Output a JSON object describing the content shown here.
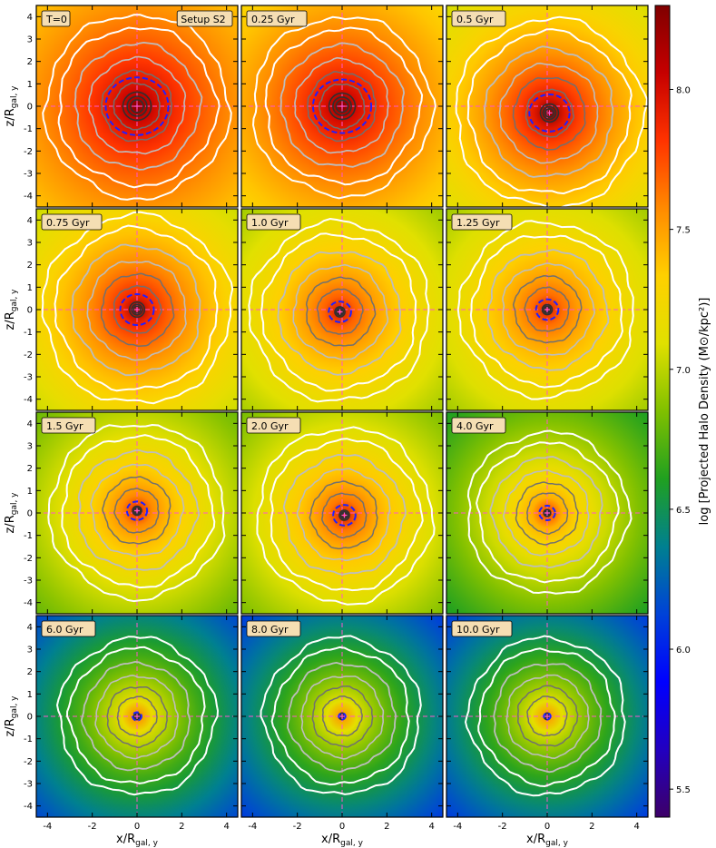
{
  "chart_data": {
    "type": "heatmap",
    "layout": {
      "rows": 4,
      "cols": 3
    },
    "setup_label": "Setup S2",
    "panels": [
      {
        "time_label": "T=0",
        "t_gyr": 0,
        "core_logrho": 8.3,
        "outer_logrho": 7.35,
        "dashed_blue_radius": 1.4,
        "outer_white_contour_radius": 4.1,
        "blob_dx": 0.0,
        "blob_dy": 0.0
      },
      {
        "time_label": "0.25 Gyr",
        "t_gyr": 0.25,
        "core_logrho": 8.3,
        "outer_logrho": 7.25,
        "dashed_blue_radius": 1.3,
        "outer_white_contour_radius": 4.0,
        "blob_dx": 0.0,
        "blob_dy": 0.0
      },
      {
        "time_label": "0.5 Gyr",
        "t_gyr": 0.5,
        "core_logrho": 8.3,
        "outer_logrho": 7.05,
        "dashed_blue_radius": 0.9,
        "outer_white_contour_radius": 4.2,
        "blob_dx": 0.1,
        "blob_dy": -0.3
      },
      {
        "time_label": "0.75 Gyr",
        "t_gyr": 0.75,
        "core_logrho": 8.2,
        "outer_logrho": 7.0,
        "dashed_blue_radius": 0.75,
        "outer_white_contour_radius": 4.2,
        "blob_dx": 0.0,
        "blob_dy": 0.0
      },
      {
        "time_label": "1.0 Gyr",
        "t_gyr": 1.0,
        "core_logrho": 8.0,
        "outer_logrho": 6.9,
        "dashed_blue_radius": 0.5,
        "outer_white_contour_radius": 4.0,
        "blob_dx": -0.1,
        "blob_dy": -0.1
      },
      {
        "time_label": "1.25 Gyr",
        "t_gyr": 1.25,
        "core_logrho": 7.95,
        "outer_logrho": 6.9,
        "dashed_blue_radius": 0.5,
        "outer_white_contour_radius": 3.9,
        "blob_dx": 0.0,
        "blob_dy": 0.0
      },
      {
        "time_label": "1.5 Gyr",
        "t_gyr": 1.5,
        "core_logrho": 7.9,
        "outer_logrho": 6.75,
        "dashed_blue_radius": 0.45,
        "outer_white_contour_radius": 3.9,
        "blob_dx": 0.0,
        "blob_dy": 0.1
      },
      {
        "time_label": "2.0 Gyr",
        "t_gyr": 2.0,
        "core_logrho": 7.95,
        "outer_logrho": 6.8,
        "dashed_blue_radius": 0.5,
        "outer_white_contour_radius": 3.9,
        "blob_dx": 0.1,
        "blob_dy": -0.1
      },
      {
        "time_label": "4.0 Gyr",
        "t_gyr": 4.0,
        "core_logrho": 7.8,
        "outer_logrho": 6.55,
        "dashed_blue_radius": 0.35,
        "outer_white_contour_radius": 3.6,
        "blob_dx": 0.0,
        "blob_dy": 0.0
      },
      {
        "time_label": "6.0 Gyr",
        "t_gyr": 6.0,
        "core_logrho": 7.6,
        "outer_logrho": 6.1,
        "dashed_blue_radius": 0.2,
        "outer_white_contour_radius": 3.5,
        "blob_dx": 0.0,
        "blob_dy": 0.0
      },
      {
        "time_label": "8.0 Gyr",
        "t_gyr": 8.0,
        "core_logrho": 7.55,
        "outer_logrho": 6.05,
        "dashed_blue_radius": 0.15,
        "outer_white_contour_radius": 3.5,
        "blob_dx": 0.0,
        "blob_dy": 0.0
      },
      {
        "time_label": "10.0 Gyr",
        "t_gyr": 10.0,
        "core_logrho": 7.55,
        "outer_logrho": 6.05,
        "dashed_blue_radius": 0.15,
        "outer_white_contour_radius": 3.5,
        "blob_dx": 0.0,
        "blob_dy": 0.0
      }
    ],
    "xlabel": "x/R",
    "xlabel_sub": "gal, y",
    "ylabel": "z/R",
    "ylabel_sub": "gal, y",
    "xlim": [
      -4.5,
      4.5
    ],
    "ylim": [
      -4.5,
      4.5
    ],
    "x_ticks": [
      -4,
      -2,
      0,
      2,
      4
    ],
    "y_ticks": [
      4,
      3,
      2,
      1,
      0,
      -1,
      -2,
      -3,
      -4
    ],
    "colorbar": {
      "label": "log [Projected Halo Density (M⊙/kpc²)]",
      "min": 5.4,
      "max": 8.3,
      "ticks": [
        8.0,
        7.5,
        7.0,
        6.5,
        6.0,
        5.5
      ],
      "colormap_stops": [
        "#3d0068",
        "#2200c0",
        "#0000ff",
        "#0042d8",
        "#008090",
        "#20a020",
        "#80c000",
        "#e0e000",
        "#ffd000",
        "#ff8a00",
        "#ff3300",
        "#c60000",
        "#800000"
      ]
    },
    "contour_colors": {
      "outer": "#ffffff",
      "mid": "#bdbdbd",
      "inner": "#707070",
      "core": "#303030",
      "marker": "#2020ff",
      "crosshair": "#ff55cc"
    }
  }
}
